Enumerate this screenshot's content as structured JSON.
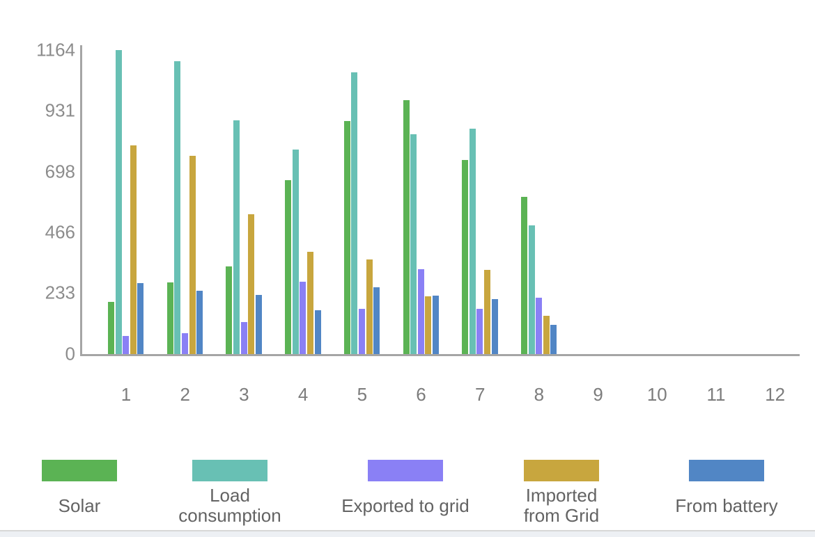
{
  "chart_data": {
    "type": "bar",
    "title": "",
    "xlabel": "",
    "ylabel": "",
    "categories": [
      "1",
      "2",
      "3",
      "4",
      "5",
      "6",
      "7",
      "8",
      "9",
      "10",
      "11",
      "12"
    ],
    "yticks": [
      0,
      233,
      466,
      698,
      931,
      1164
    ],
    "ylim": [
      0,
      1164
    ],
    "grid": false,
    "legend_position": "bottom",
    "series": [
      {
        "name": "Solar",
        "color": "#5bb354",
        "values": [
          200,
          274,
          336,
          666,
          890,
          972,
          743,
          602,
          0,
          0,
          0,
          0
        ]
      },
      {
        "name": "Load consumption",
        "color": "#68c0b4",
        "values": [
          1164,
          1121,
          895,
          783,
          1078,
          841,
          862,
          493,
          0,
          0,
          0,
          0
        ]
      },
      {
        "name": "Exported to grid",
        "color": "#8a80f5",
        "values": [
          69,
          80,
          123,
          277,
          173,
          325,
          173,
          216,
          0,
          0,
          0,
          0
        ]
      },
      {
        "name": "Imported from Grid",
        "color": "#c8a63e",
        "values": [
          799,
          759,
          535,
          392,
          362,
          221,
          322,
          147,
          0,
          0,
          0,
          0
        ]
      },
      {
        "name": "From battery",
        "color": "#5186c5",
        "values": [
          272,
          242,
          226,
          168,
          256,
          224,
          210,
          112,
          0,
          0,
          0,
          0
        ]
      }
    ],
    "legend": {
      "items": [
        {
          "label": "Solar"
        },
        {
          "label": "Load\nconsumption"
        },
        {
          "label": "Exported to grid"
        },
        {
          "label": "Imported\nfrom Grid"
        },
        {
          "label": "From battery"
        }
      ]
    },
    "colors": {
      "axis": "#a5a5a5",
      "ytick_text": "#8c8c8c",
      "xtick_text": "#7c7c7c",
      "legend_text": "#636363"
    }
  }
}
